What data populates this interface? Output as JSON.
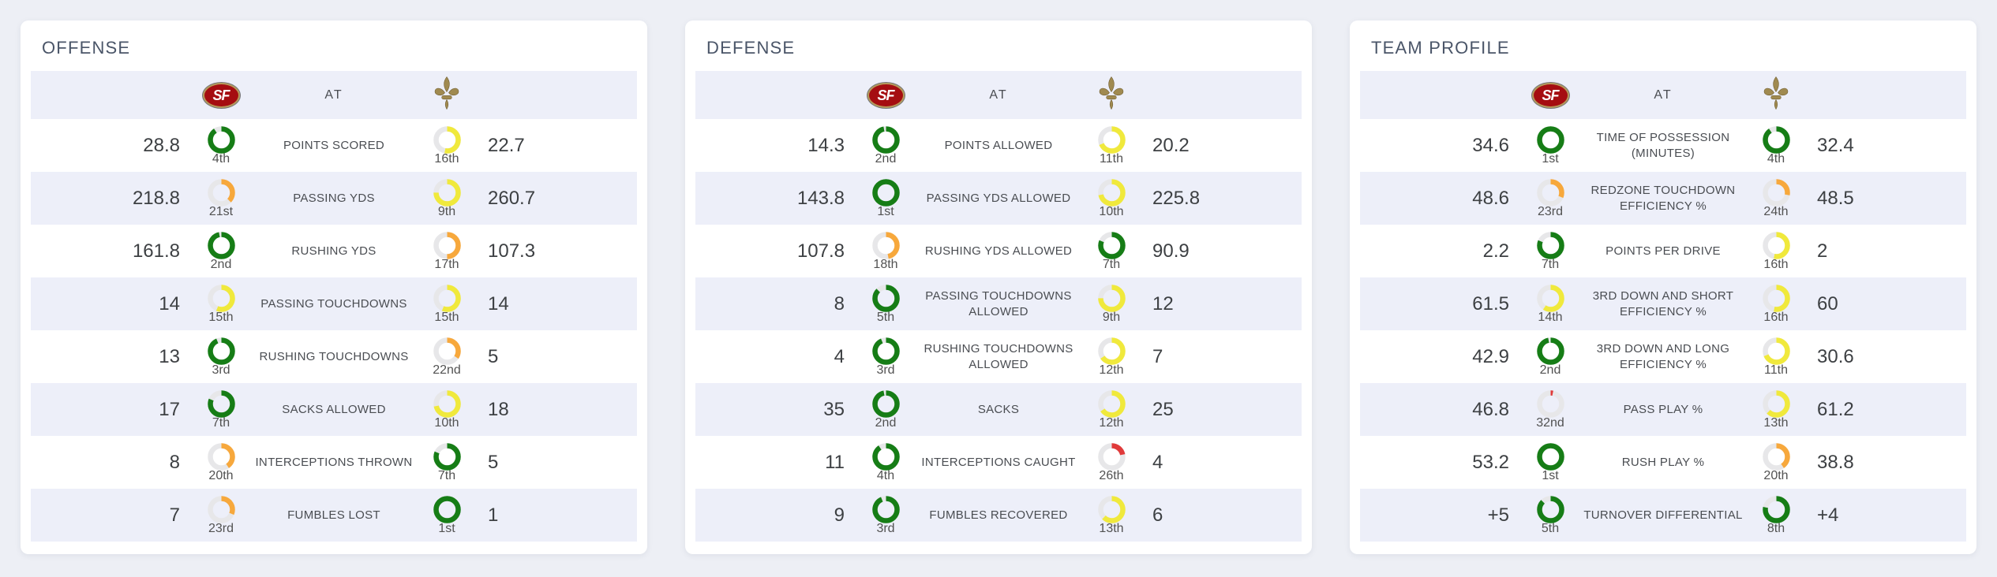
{
  "page": {
    "background": "#edeff5"
  },
  "header": {
    "matchup_label": "AT"
  },
  "teams": {
    "away": {
      "abbr": "SF",
      "name": "San Francisco 49ers",
      "logo": "sf-red-oval"
    },
    "home": {
      "abbr": "NO",
      "name": "New Orleans Saints",
      "logo": "gold-fleur-de-lis"
    }
  },
  "ring": {
    "track_color": "#e7e7e9",
    "tier_colors": {
      "green": "#167d16",
      "yellow": "#f0e93c",
      "orange": "#f7a83c",
      "red": "#e03a3a"
    }
  },
  "panels": [
    {
      "title": "OFFENSE",
      "rows": [
        {
          "label": "POINTS SCORED",
          "away": {
            "value": "28.8",
            "rank": 4,
            "rank_label": "4th"
          },
          "home": {
            "value": "22.7",
            "rank": 16,
            "rank_label": "16th"
          }
        },
        {
          "label": "PASSING YDS",
          "away": {
            "value": "218.8",
            "rank": 21,
            "rank_label": "21st"
          },
          "home": {
            "value": "260.7",
            "rank": 9,
            "rank_label": "9th"
          }
        },
        {
          "label": "RUSHING YDS",
          "away": {
            "value": "161.8",
            "rank": 2,
            "rank_label": "2nd"
          },
          "home": {
            "value": "107.3",
            "rank": 17,
            "rank_label": "17th"
          }
        },
        {
          "label": "PASSING TOUCHDOWNS",
          "away": {
            "value": "14",
            "rank": 15,
            "rank_label": "15th"
          },
          "home": {
            "value": "14",
            "rank": 15,
            "rank_label": "15th"
          }
        },
        {
          "label": "RUSHING TOUCHDOWNS",
          "away": {
            "value": "13",
            "rank": 3,
            "rank_label": "3rd"
          },
          "home": {
            "value": "5",
            "rank": 22,
            "rank_label": "22nd"
          }
        },
        {
          "label": "SACKS ALLOWED",
          "away": {
            "value": "17",
            "rank": 7,
            "rank_label": "7th"
          },
          "home": {
            "value": "18",
            "rank": 10,
            "rank_label": "10th"
          }
        },
        {
          "label": "INTERCEPTIONS THROWN",
          "away": {
            "value": "8",
            "rank": 20,
            "rank_label": "20th"
          },
          "home": {
            "value": "5",
            "rank": 7,
            "rank_label": "7th"
          }
        },
        {
          "label": "FUMBLES LOST",
          "away": {
            "value": "7",
            "rank": 23,
            "rank_label": "23rd"
          },
          "home": {
            "value": "1",
            "rank": 1,
            "rank_label": "1st"
          }
        }
      ]
    },
    {
      "title": "DEFENSE",
      "rows": [
        {
          "label": "POINTS ALLOWED",
          "away": {
            "value": "14.3",
            "rank": 2,
            "rank_label": "2nd"
          },
          "home": {
            "value": "20.2",
            "rank": 11,
            "rank_label": "11th"
          }
        },
        {
          "label": "PASSING YDS ALLOWED",
          "away": {
            "value": "143.8",
            "rank": 1,
            "rank_label": "1st"
          },
          "home": {
            "value": "225.8",
            "rank": 10,
            "rank_label": "10th"
          }
        },
        {
          "label": "RUSHING YDS ALLOWED",
          "away": {
            "value": "107.8",
            "rank": 18,
            "rank_label": "18th"
          },
          "home": {
            "value": "90.9",
            "rank": 7,
            "rank_label": "7th"
          }
        },
        {
          "label": "PASSING TOUCHDOWNS ALLOWED",
          "away": {
            "value": "8",
            "rank": 5,
            "rank_label": "5th"
          },
          "home": {
            "value": "12",
            "rank": 9,
            "rank_label": "9th"
          }
        },
        {
          "label": "RUSHING TOUCHDOWNS ALLOWED",
          "away": {
            "value": "4",
            "rank": 3,
            "rank_label": "3rd"
          },
          "home": {
            "value": "7",
            "rank": 12,
            "rank_label": "12th"
          }
        },
        {
          "label": "SACKS",
          "away": {
            "value": "35",
            "rank": 2,
            "rank_label": "2nd"
          },
          "home": {
            "value": "25",
            "rank": 12,
            "rank_label": "12th"
          }
        },
        {
          "label": "INTERCEPTIONS CAUGHT",
          "away": {
            "value": "11",
            "rank": 4,
            "rank_label": "4th"
          },
          "home": {
            "value": "4",
            "rank": 26,
            "rank_label": "26th"
          }
        },
        {
          "label": "FUMBLES RECOVERED",
          "away": {
            "value": "9",
            "rank": 3,
            "rank_label": "3rd"
          },
          "home": {
            "value": "6",
            "rank": 13,
            "rank_label": "13th"
          }
        }
      ]
    },
    {
      "title": "TEAM PROFILE",
      "rows": [
        {
          "label": "TIME OF POSSESSION (MINUTES)",
          "away": {
            "value": "34.6",
            "rank": 1,
            "rank_label": "1st"
          },
          "home": {
            "value": "32.4",
            "rank": 4,
            "rank_label": "4th"
          }
        },
        {
          "label": "REDZONE TOUCHDOWN EFFICIENCY %",
          "away": {
            "value": "48.6",
            "rank": 23,
            "rank_label": "23rd"
          },
          "home": {
            "value": "48.5",
            "rank": 24,
            "rank_label": "24th"
          }
        },
        {
          "label": "POINTS PER DRIVE",
          "away": {
            "value": "2.2",
            "rank": 7,
            "rank_label": "7th"
          },
          "home": {
            "value": "2",
            "rank": 16,
            "rank_label": "16th"
          }
        },
        {
          "label": "3RD DOWN AND SHORT EFFICIENCY %",
          "away": {
            "value": "61.5",
            "rank": 14,
            "rank_label": "14th"
          },
          "home": {
            "value": "60",
            "rank": 16,
            "rank_label": "16th"
          }
        },
        {
          "label": "3RD DOWN AND LONG EFFICIENCY %",
          "away": {
            "value": "42.9",
            "rank": 2,
            "rank_label": "2nd"
          },
          "home": {
            "value": "30.6",
            "rank": 11,
            "rank_label": "11th"
          }
        },
        {
          "label": "PASS PLAY %",
          "away": {
            "value": "46.8",
            "rank": 32,
            "rank_label": "32nd"
          },
          "home": {
            "value": "61.2",
            "rank": 13,
            "rank_label": "13th"
          }
        },
        {
          "label": "RUSH PLAY %",
          "away": {
            "value": "53.2",
            "rank": 1,
            "rank_label": "1st"
          },
          "home": {
            "value": "38.8",
            "rank": 20,
            "rank_label": "20th"
          }
        },
        {
          "label": "TURNOVER DIFFERENTIAL",
          "away": {
            "value": "+5",
            "rank": 5,
            "rank_label": "5th"
          },
          "home": {
            "value": "+4",
            "rank": 8,
            "rank_label": "8th"
          }
        }
      ]
    }
  ]
}
